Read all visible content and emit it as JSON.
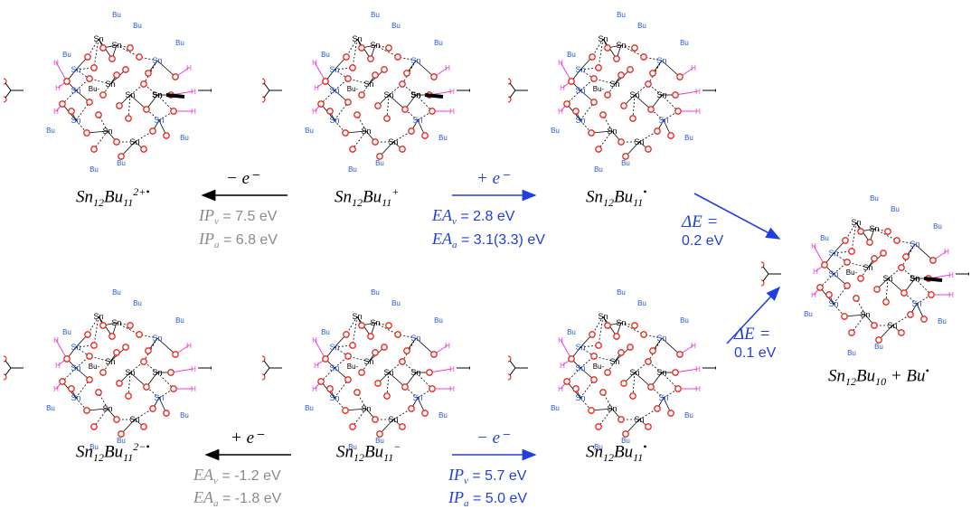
{
  "atoms": {
    "sn": "Sn",
    "bu": "Bu",
    "o": "O",
    "h": "H",
    "sn_bu": "Bu-"
  },
  "colors": {
    "oxygen": "#e8261e",
    "tin_blue": "#2457e6",
    "hydrogen": "#e83fd1",
    "gray": "#8a8a8a",
    "blue": "#1f3fe0"
  },
  "molecules": [
    {
      "id": "m1",
      "label_main": "Sn",
      "label_sub1": "12",
      "label_mid": "Bu",
      "label_sub2": "11",
      "label_sup": "2+•"
    },
    {
      "id": "m2",
      "label_main": "Sn",
      "label_sub1": "12",
      "label_mid": "Bu",
      "label_sub2": "11",
      "label_sup": "+"
    },
    {
      "id": "m3",
      "label_main": "Sn",
      "label_sub1": "12",
      "label_mid": "Bu",
      "label_sub2": "11",
      "label_sup": "•"
    },
    {
      "id": "m4",
      "label_main": "Sn",
      "label_sub1": "12",
      "label_mid": "Bu",
      "label_sub2": "11",
      "label_sup": "2−•"
    },
    {
      "id": "m5",
      "label_main": "Sn",
      "label_sub1": "12",
      "label_mid": "Bu",
      "label_sub2": "11",
      "label_sup": "−"
    },
    {
      "id": "m6",
      "label_main": "Sn",
      "label_sub1": "12",
      "label_mid": "Bu",
      "label_sub2": "11",
      "label_sup": "•"
    },
    {
      "id": "m7",
      "label_main": "Sn",
      "label_sub1": "12",
      "label_mid": "Bu",
      "label_sub2": "10",
      "label_plus": " + Bu",
      "label_sup": "•"
    }
  ],
  "arrows": {
    "top_left": {
      "label": "− e⁻",
      "lines": [
        {
          "sym": "IP",
          "sub": "v",
          "text": " = 7.5 eV"
        },
        {
          "sym": "IP",
          "sub": "a",
          "text": " = 6.8 eV"
        }
      ]
    },
    "top_right": {
      "label": "+ e⁻",
      "lines": [
        {
          "sym": "EA",
          "sub": "v",
          "text": " = 2.8 eV"
        },
        {
          "sym": "EA",
          "sub": "a",
          "text": " = 3.1(3.3) eV"
        }
      ]
    },
    "bottom_left": {
      "label": "+ e⁻",
      "lines": [
        {
          "sym": "EA",
          "sub": "v",
          "text": " = -1.2 eV"
        },
        {
          "sym": "EA",
          "sub": "a",
          "text": " = -1.8 eV"
        }
      ]
    },
    "bottom_right": {
      "label": "− e⁻",
      "lines": [
        {
          "sym": "IP",
          "sub": "v",
          "text": " = 5.7 eV"
        },
        {
          "sym": "IP",
          "sub": "a",
          "text": " = 5.0 eV"
        }
      ]
    }
  },
  "delta_top": {
    "sym": "ΔE =",
    "value": "0.2 eV"
  },
  "delta_bottom": {
    "sym": "ΔE =",
    "value": "0.1 eV"
  }
}
